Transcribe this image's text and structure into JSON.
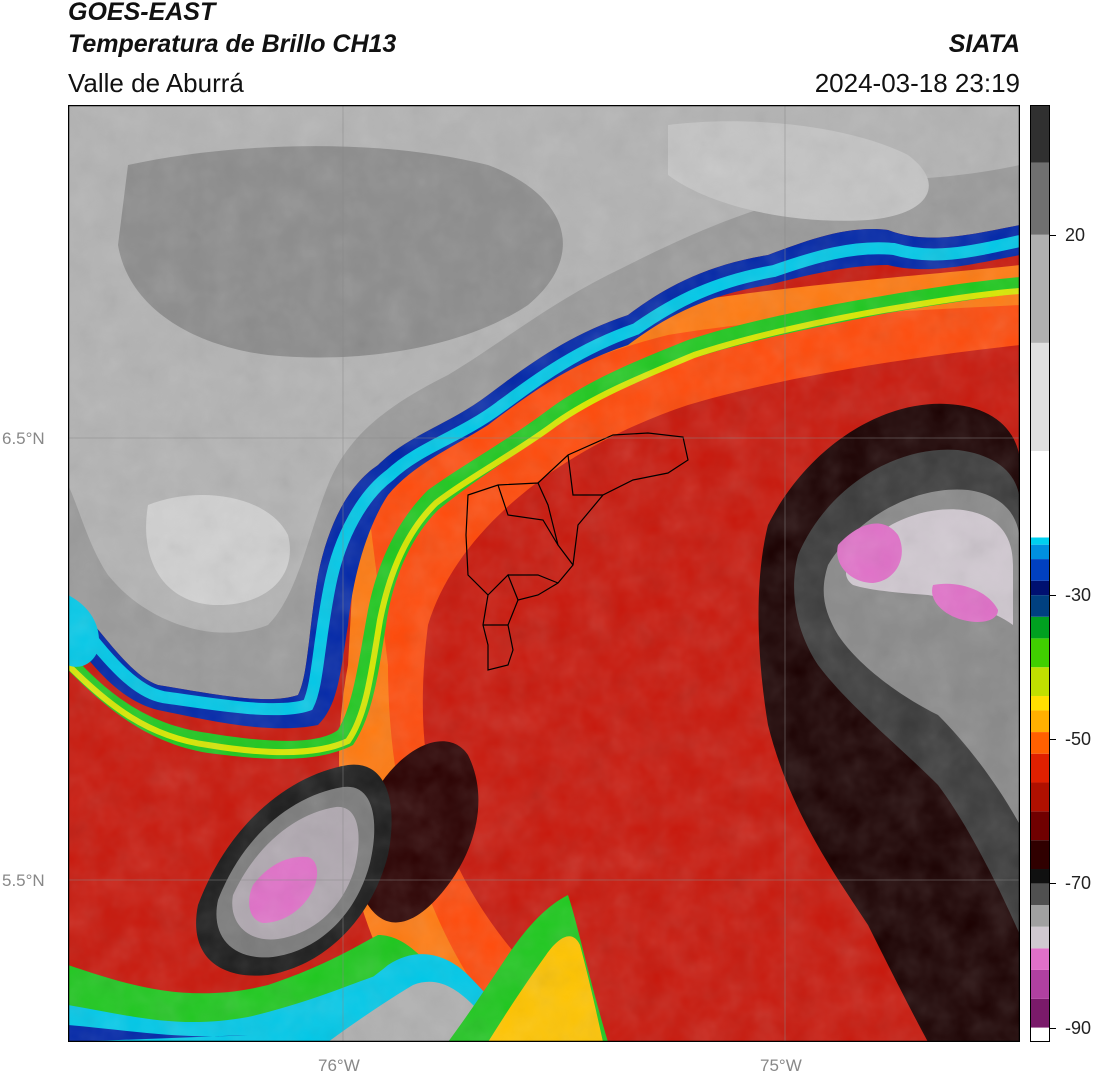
{
  "header": {
    "satellite": "GOES-EAST",
    "product": "Temperatura de Brillo CH13",
    "region": "Valle de Aburrá",
    "organization": "SIATA",
    "timestamp": "2024-03-18 23:19"
  },
  "map": {
    "gridlines": true,
    "latitude_labels": [
      "6.5°N",
      "5.5°N"
    ],
    "longitude_labels": [
      "76°W",
      "75°W"
    ]
  },
  "colorbar": {
    "tick_labels": [
      "20",
      "-30",
      "-50",
      "-70",
      "-90"
    ],
    "tick_values": [
      20,
      -30,
      -50,
      -70,
      -90
    ],
    "range": [
      -92,
      38
    ],
    "units": ""
  }
}
